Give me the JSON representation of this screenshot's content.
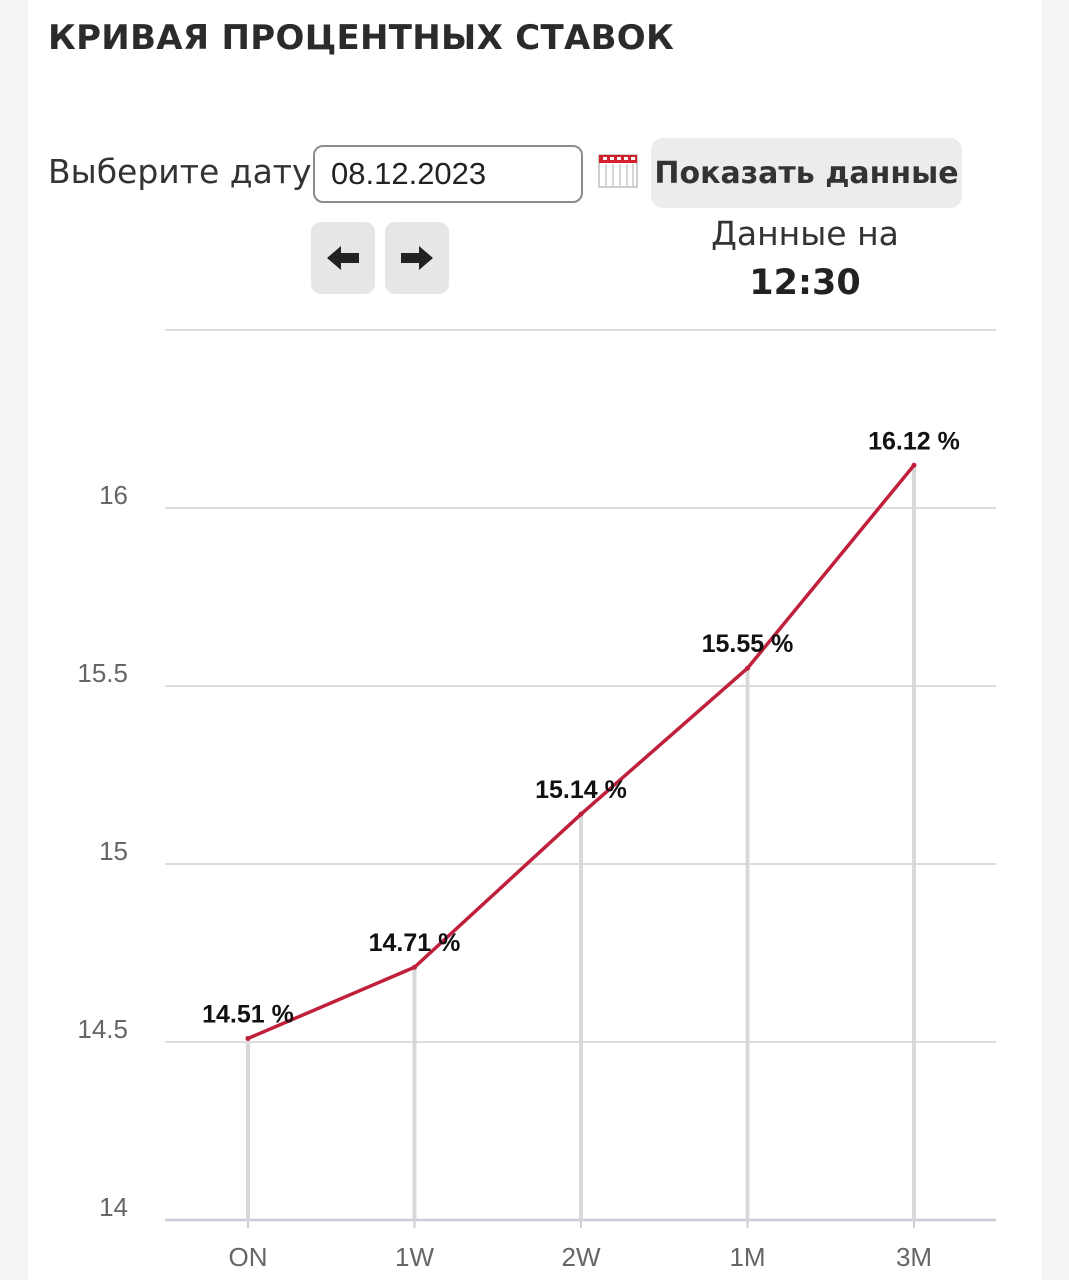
{
  "header": {
    "title": "КРИВАЯ ПРОЦЕНТНЫХ СТАВОК"
  },
  "controls": {
    "date_label": "Выберите дату:",
    "date_value": "08.12.2023",
    "show_button": "Показать данные",
    "prev_icon": "arrow-left-icon",
    "next_icon": "arrow-right-icon",
    "calendar_icon": "calendar-icon"
  },
  "status": {
    "data_on_label": "Данные на",
    "time": "12:30"
  },
  "colors": {
    "line": "#c0203c",
    "grid": "#dcdcdc",
    "stem": "#d8d8d8"
  },
  "chart_data": {
    "type": "line",
    "categories": [
      "ON",
      "1W",
      "2W",
      "1M",
      "3M"
    ],
    "values": [
      14.51,
      14.71,
      15.14,
      15.55,
      16.12
    ],
    "value_labels": [
      "14.51 %",
      "14.71 %",
      "15.14 %",
      "15.55 %",
      "16.12 %"
    ],
    "y_ticks": [
      14,
      14.5,
      15,
      15.5,
      16
    ],
    "y_tick_labels": [
      "14",
      "14.5",
      "15",
      "15.5",
      "16"
    ],
    "ylim": [
      14,
      16.5
    ],
    "grid": true,
    "legend": "none"
  }
}
